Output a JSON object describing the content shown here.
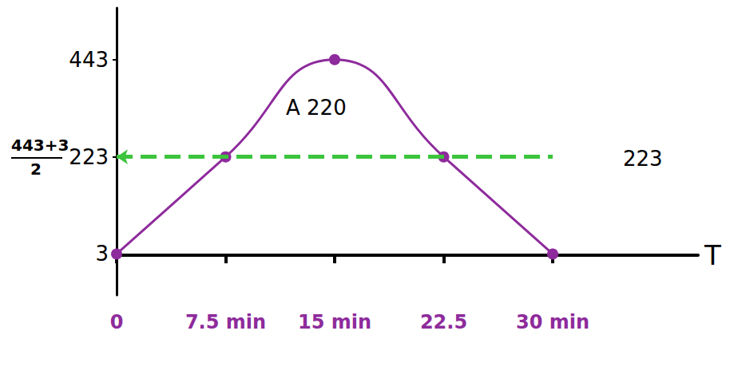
{
  "chart_data": {
    "type": "line",
    "x": [
      0,
      7.5,
      15,
      22.5,
      30
    ],
    "values": [
      3,
      223,
      443,
      223,
      3
    ],
    "color": "#8e2b9c",
    "marker": "circle",
    "line_style": "solid",
    "x_label": "T",
    "xlim": [
      0,
      40
    ],
    "xticks": [
      0,
      {
        "value": 7.5,
        "label": "7.5 min"
      },
      {
        "value": 15,
        "label": "15 min"
      },
      22.5,
      {
        "value": 30,
        "label": "30 min"
      }
    ],
    "ylim": [
      -90,
      560
    ],
    "yticks": [
      3,
      223,
      443
    ],
    "grid": false,
    "reference_line": {
      "value": 223,
      "color": "#3cc43c"
    },
    "annotations": [
      "443+3",
      "2",
      "A 220",
      "223"
    ]
  }
}
